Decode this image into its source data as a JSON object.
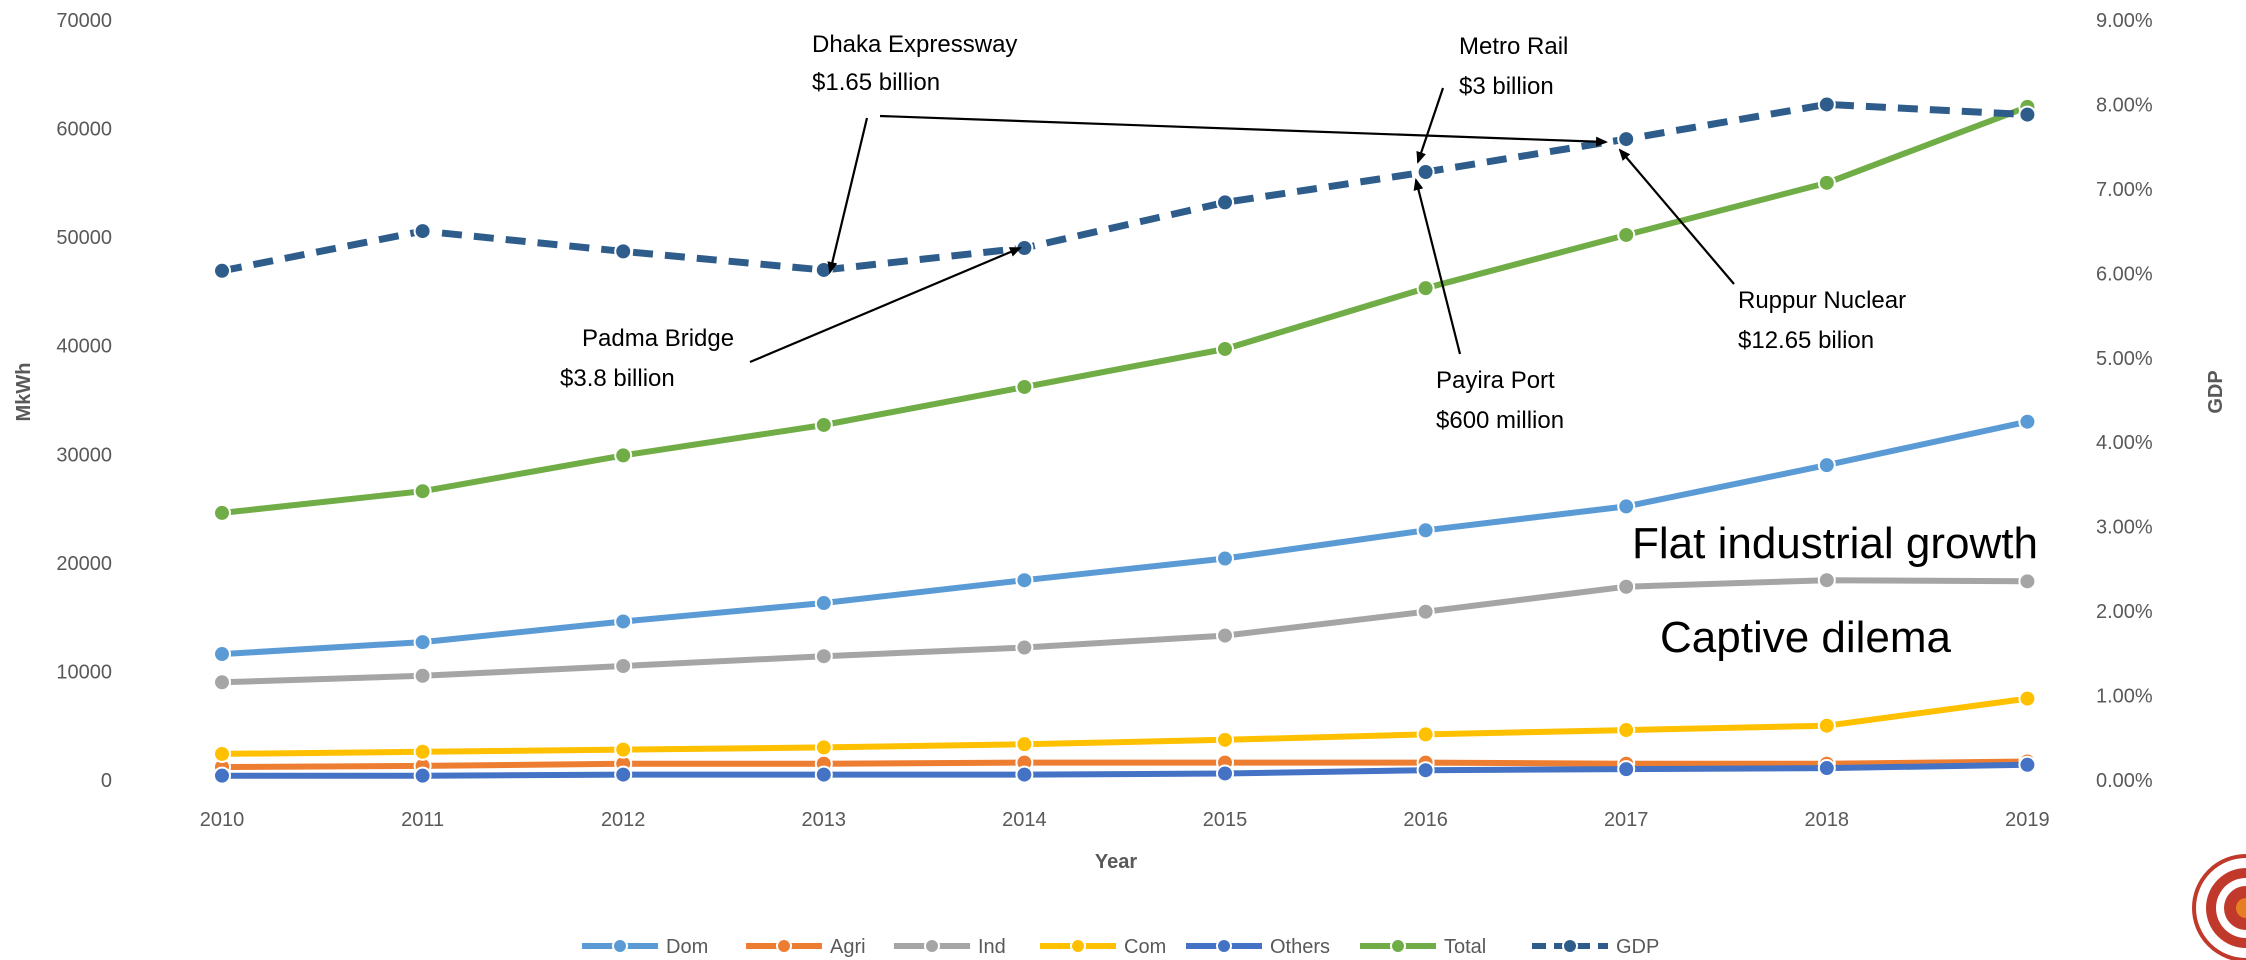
{
  "chart_data": {
    "type": "line",
    "title": "",
    "xlabel": "Year",
    "ylabel": "MkWh",
    "y2label": "GDP",
    "categories": [
      "2010",
      "2011",
      "2012",
      "2013",
      "2014",
      "2015",
      "2016",
      "2017",
      "2018",
      "2019"
    ],
    "ylim": [
      0,
      70000
    ],
    "yticks": [
      "0",
      "10000",
      "20000",
      "30000",
      "40000",
      "50000",
      "60000",
      "70000"
    ],
    "y2lim": [
      0,
      9
    ],
    "y2ticks": [
      "0.00%",
      "1.00%",
      "2.00%",
      "3.00%",
      "4.00%",
      "5.00%",
      "6.00%",
      "7.00%",
      "8.00%",
      "9.00%"
    ],
    "grid": false,
    "legend_position": "bottom",
    "series": [
      {
        "name": "Dom",
        "axis": "left",
        "color": "#5b9bd5",
        "dashed": false,
        "values": [
          11600,
          12700,
          14600,
          16300,
          18400,
          20400,
          23000,
          25200,
          29000,
          33000
        ]
      },
      {
        "name": "Agri",
        "axis": "left",
        "color": "#ed7d31",
        "dashed": false,
        "values": [
          1200,
          1300,
          1500,
          1500,
          1600,
          1600,
          1600,
          1500,
          1500,
          1700
        ]
      },
      {
        "name": "Ind",
        "axis": "left",
        "color": "#a5a5a5",
        "dashed": false,
        "values": [
          9000,
          9600,
          10500,
          11400,
          12200,
          13300,
          15500,
          17800,
          18400,
          18300
        ]
      },
      {
        "name": "Com",
        "axis": "left",
        "color": "#ffc000",
        "dashed": false,
        "values": [
          2400,
          2600,
          2800,
          3000,
          3300,
          3700,
          4200,
          4600,
          5000,
          7500
        ]
      },
      {
        "name": "Others",
        "axis": "left",
        "color": "#4472c4",
        "dashed": false,
        "values": [
          400,
          400,
          500,
          500,
          500,
          600,
          900,
          1000,
          1100,
          1400
        ]
      },
      {
        "name": "Total",
        "axis": "left",
        "color": "#70ad47",
        "dashed": false,
        "values": [
          24600,
          26600,
          29900,
          32700,
          36200,
          39700,
          45300,
          50200,
          55000,
          62000
        ]
      },
      {
        "name": "GDP",
        "axis": "right",
        "color": "#2e5d8c",
        "dashed": true,
        "values": [
          6.03,
          6.5,
          6.26,
          6.04,
          6.3,
          6.84,
          7.2,
          7.59,
          8.0,
          7.88
        ]
      }
    ],
    "annotations": [
      {
        "id": "dhaka",
        "lines": [
          "Dhaka Expressway",
          "$1.65 billion"
        ]
      },
      {
        "id": "metro",
        "lines": [
          "Metro Rail",
          "$3 billion"
        ]
      },
      {
        "id": "padma",
        "lines": [
          "Padma Bridge",
          "$3.8 billion"
        ]
      },
      {
        "id": "payira",
        "lines": [
          "Payira Port",
          "$600 million"
        ]
      },
      {
        "id": "ruppur",
        "lines": [
          "Ruppur Nuclear",
          "$12.65 bilion"
        ]
      }
    ],
    "callouts": [
      "Flat industrial growth",
      "Captive dilema"
    ]
  },
  "seal": {
    "name": "institution-seal-logo",
    "color": "#c0392b"
  }
}
